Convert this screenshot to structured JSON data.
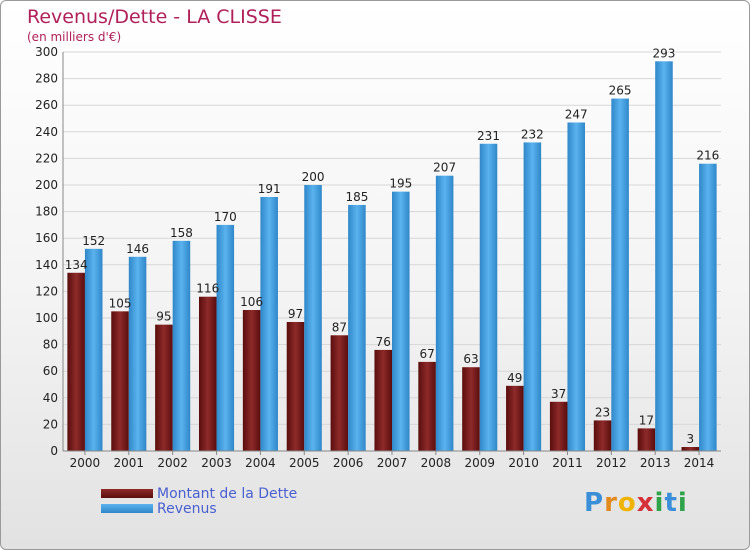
{
  "header": {
    "title": "Revenus/Dette - LA CLISSE",
    "subtitle": "(en milliers d'€)"
  },
  "legend": {
    "items": [
      {
        "label": "Montant de la Dette",
        "color": "#7a1a1a"
      },
      {
        "label": "Revenus",
        "color": "#4aa3e6"
      }
    ]
  },
  "brand": {
    "logo_text": "Proxiti"
  },
  "chart_data": {
    "type": "bar",
    "categories": [
      "2000",
      "2001",
      "2002",
      "2003",
      "2004",
      "2005",
      "2006",
      "2007",
      "2008",
      "2009",
      "2010",
      "2011",
      "2012",
      "2013",
      "2014"
    ],
    "series": [
      {
        "name": "Montant de la Dette",
        "color": "#7a1a1a",
        "values": [
          134,
          105,
          95,
          116,
          106,
          97,
          87,
          76,
          67,
          63,
          49,
          37,
          23,
          17,
          3
        ]
      },
      {
        "name": "Revenus",
        "color": "#4aa3e6",
        "values": [
          152,
          146,
          158,
          170,
          191,
          200,
          185,
          195,
          207,
          231,
          232,
          247,
          265,
          293,
          216
        ]
      }
    ],
    "title": "Revenus/Dette - LA CLISSE",
    "subtitle": "(en milliers d'€)",
    "ylim": [
      0,
      300
    ],
    "yticks": [
      0,
      20,
      40,
      60,
      80,
      100,
      120,
      140,
      160,
      180,
      200,
      220,
      240,
      260,
      280,
      300
    ],
    "grid": true,
    "legend_position": "bottom-left"
  }
}
